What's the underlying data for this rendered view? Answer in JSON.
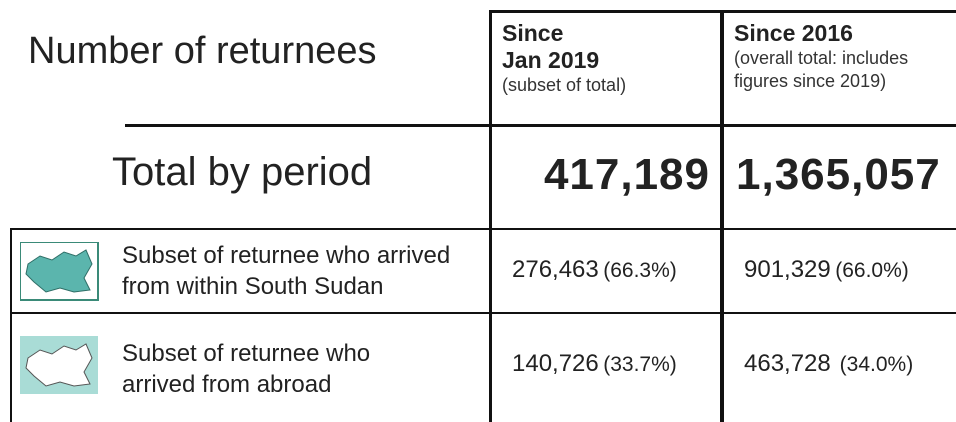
{
  "title": "Number of returnees",
  "columns": [
    {
      "heading": [
        "Since",
        "Jan 2019"
      ],
      "note": [
        "(subset of total)"
      ]
    },
    {
      "heading": [
        "Since 2016"
      ],
      "note": [
        "(overall total: includes",
        "figures since 2019)"
      ]
    }
  ],
  "total_row": {
    "label": "Total by period",
    "values": [
      "417,189",
      "1,365,057"
    ]
  },
  "rows": [
    {
      "label": [
        "Subset of returnee who arrived",
        "from within South Sudan"
      ],
      "values": [
        {
          "value": "276,463",
          "share": "(66.3%)"
        },
        {
          "value": "901,329",
          "share": "(66.0%)"
        }
      ]
    },
    {
      "label": [
        "Subset of returnee who",
        "arrived from abroad"
      ],
      "values": [
        {
          "value": "140,726",
          "share": "(33.7%)"
        },
        {
          "value": "463,728",
          "share": "(34.0%)"
        }
      ]
    }
  ]
}
